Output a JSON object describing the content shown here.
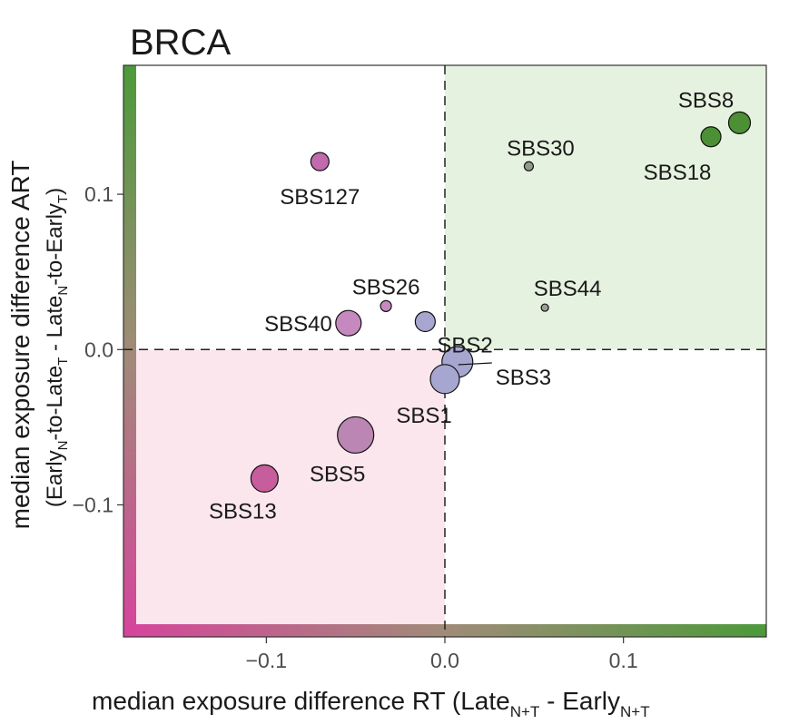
{
  "chart_data": {
    "type": "scatter",
    "title": "BRCA",
    "xlabel": {
      "main": "median exposure difference RT (Late",
      "sub1": "N+T",
      "mid": " - Early",
      "sub2": "N+T"
    },
    "ylabel": {
      "line1": "median exposure difference ART",
      "line2": {
        "a": "(Early",
        "sub_a": "N",
        "b": "-to-Late",
        "sub_b": "T",
        "c": " - Late",
        "sub_c": "N",
        "d": "-to-Early",
        "sub_d": "T",
        "e": ")"
      }
    },
    "xlim": [
      -0.18,
      0.18
    ],
    "ylim": [
      -0.185,
      0.183
    ],
    "x_ticks": [
      -0.1,
      0.0,
      0.1
    ],
    "x_tick_labels": [
      "−0.1",
      "0.0",
      "0.1"
    ],
    "y_ticks": [
      -0.1,
      0.0,
      0.1
    ],
    "y_tick_labels": [
      "−0.1",
      "0.0",
      "0.1"
    ],
    "grid": false,
    "quadrant_colors": {
      "upper_right": "#e6f2e0",
      "lower_left": "#fbe6ee"
    },
    "gradient_colors": {
      "pink": "#d6449c",
      "mid": "#a08b78",
      "green": "#4c9a3a"
    },
    "points": [
      {
        "name": "SBS8",
        "x": 0.165,
        "y": 0.146,
        "size": 12,
        "color": "#4c8f34"
      },
      {
        "name": "SBS18",
        "x": 0.149,
        "y": 0.137,
        "size": 11,
        "color": "#4c8f34"
      },
      {
        "name": "SBS30",
        "x": 0.047,
        "y": 0.118,
        "size": 5,
        "color": "#909a8a"
      },
      {
        "name": "SBS127",
        "x": -0.07,
        "y": 0.121,
        "size": 10,
        "color": "#c16aad"
      },
      {
        "name": "SBS44",
        "x": 0.056,
        "y": 0.027,
        "size": 4,
        "color": "#9aa096"
      },
      {
        "name": "SBS26",
        "x": -0.033,
        "y": 0.028,
        "size": 6,
        "color": "#c689bf"
      },
      {
        "name": "SBS40",
        "x": -0.054,
        "y": 0.017,
        "size": 14,
        "color": "#c689bf"
      },
      {
        "name": "SBS2",
        "x": -0.011,
        "y": 0.018,
        "size": 11,
        "color": "#a6a6d1"
      },
      {
        "name": "SBS3",
        "x": 0.007,
        "y": -0.008,
        "size": 17,
        "color": "#a6a6d1"
      },
      {
        "name": "SBS1",
        "x": 0.0,
        "y": -0.019,
        "size": 16,
        "color": "#a6a6d1"
      },
      {
        "name": "SBS5",
        "x": -0.05,
        "y": -0.055,
        "size": 20,
        "color": "#bb86b3"
      },
      {
        "name": "SBS13",
        "x": -0.101,
        "y": -0.083,
        "size": 15,
        "color": "#c85d9e"
      }
    ]
  }
}
